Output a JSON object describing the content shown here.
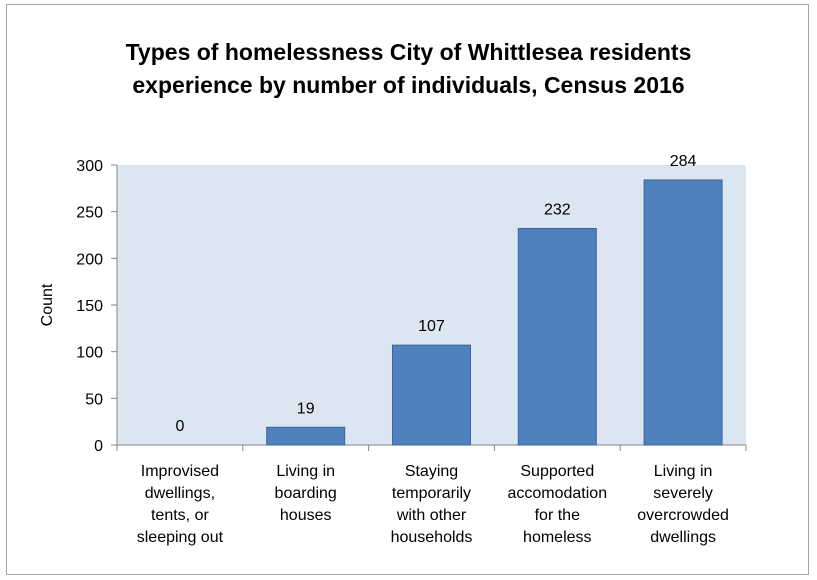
{
  "chart_data": {
    "type": "bar",
    "title_lines": [
      "Types of homelessness City of Whittlesea residents",
      "experience by number of individuals, Census 2016"
    ],
    "ylabel": "Count",
    "xlabel": "",
    "ylim": [
      0,
      300
    ],
    "yticks": [
      0,
      50,
      100,
      150,
      200,
      250,
      300
    ],
    "categories": [
      [
        "Improvised",
        "dwellings,",
        "tents, or",
        "sleeping out"
      ],
      [
        "Living in",
        "boarding",
        "houses"
      ],
      [
        "Staying",
        "temporarily",
        "with other",
        "households"
      ],
      [
        "Supported",
        "accomodation",
        "for the",
        "homeless"
      ],
      [
        "Living in",
        "severely",
        "overcrowded",
        "dwellings"
      ]
    ],
    "values": [
      0,
      19,
      107,
      232,
      284
    ],
    "colors": {
      "bar": "#4f81bd",
      "bar_border": "#3a6795",
      "plot_bg": "#dce6f2"
    },
    "grid": false,
    "legend": "none"
  }
}
